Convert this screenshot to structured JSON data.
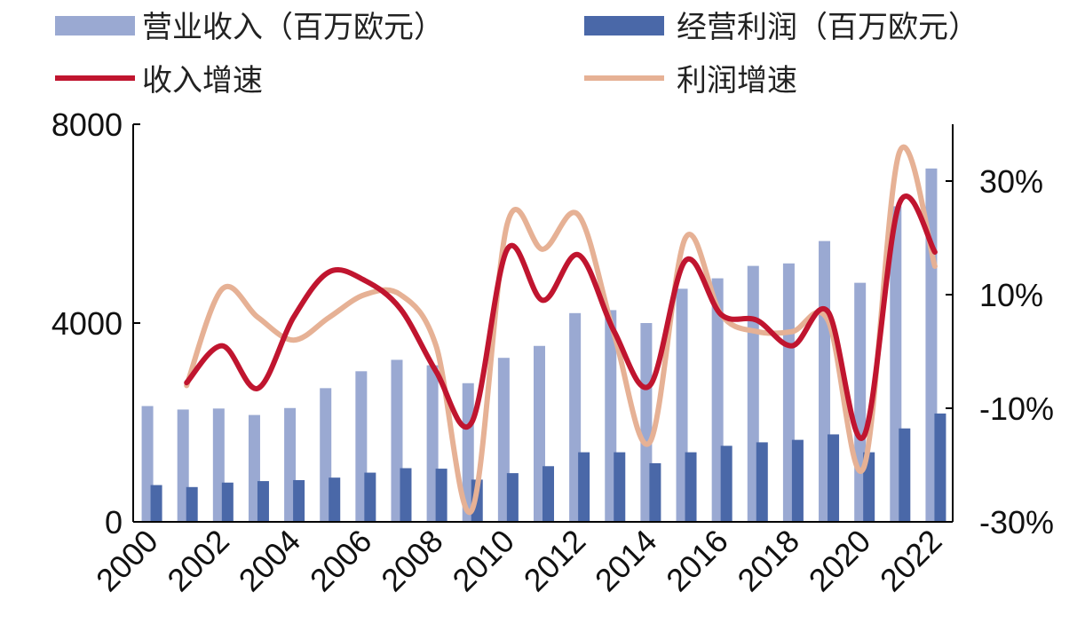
{
  "chart_data": {
    "type": "bar",
    "x": [
      2000,
      2001,
      2002,
      2003,
      2004,
      2005,
      2006,
      2007,
      2008,
      2009,
      2010,
      2011,
      2012,
      2013,
      2014,
      2015,
      2016,
      2017,
      2018,
      2019,
      2020,
      2021,
      2022
    ],
    "x_tick_labels": [
      "2000",
      "2002",
      "2004",
      "2006",
      "2008",
      "2010",
      "2012",
      "2014",
      "2016",
      "2018",
      "2020",
      "2022"
    ],
    "series": [
      {
        "name": "营业收入（百万欧元）",
        "type": "bar",
        "axis": "left",
        "color": "#9aa9d2",
        "values": [
          2330,
          2260,
          2280,
          2150,
          2290,
          2690,
          3030,
          3260,
          3150,
          2790,
          3300,
          3540,
          4200,
          4260,
          4000,
          4690,
          4900,
          5150,
          5200,
          5650,
          4810,
          6350,
          7110
        ]
      },
      {
        "name": "经营利润（百万欧元）",
        "type": "bar",
        "axis": "left",
        "color": "#4a68a8",
        "values": [
          740,
          700,
          790,
          820,
          840,
          890,
          990,
          1080,
          1070,
          850,
          980,
          1120,
          1400,
          1400,
          1180,
          1400,
          1530,
          1600,
          1650,
          1760,
          1400,
          1880,
          2180
        ]
      },
      {
        "name": "收入增速",
        "type": "line",
        "axis": "right",
        "color": "#c0152f",
        "values": [
          null,
          -5.5,
          1.0,
          -6.5,
          6.0,
          14.0,
          12.5,
          7.5,
          -3.5,
          -12.5,
          18.0,
          9.0,
          17.0,
          3.5,
          -6.0,
          16.0,
          6.5,
          5.5,
          1.0,
          7.0,
          -15.0,
          26.0,
          17.5
        ]
      },
      {
        "name": "利润增速",
        "type": "line",
        "axis": "right",
        "color": "#e6b195",
        "values": [
          null,
          -6.0,
          11.0,
          6.0,
          2.0,
          6.0,
          10.0,
          10.0,
          1.0,
          -28.0,
          22.5,
          18.0,
          24.0,
          3.0,
          -16.0,
          20.0,
          6.5,
          3.5,
          3.5,
          5.5,
          -20.5,
          35.0,
          15.0
        ]
      }
    ],
    "y_left": {
      "ylim": [
        0,
        8000
      ],
      "ticks": [
        "0",
        "4000",
        "8000"
      ]
    },
    "y_right": {
      "ylim": [
        -30,
        40
      ],
      "ticks": [
        "-30%",
        "-10%",
        "10%",
        "30%"
      ]
    },
    "legend": {
      "position": "top",
      "entries": [
        "营业收入（百万欧元）",
        "经营利润（百万欧元）",
        "收入增速",
        "利润增速"
      ]
    },
    "grid": false
  }
}
